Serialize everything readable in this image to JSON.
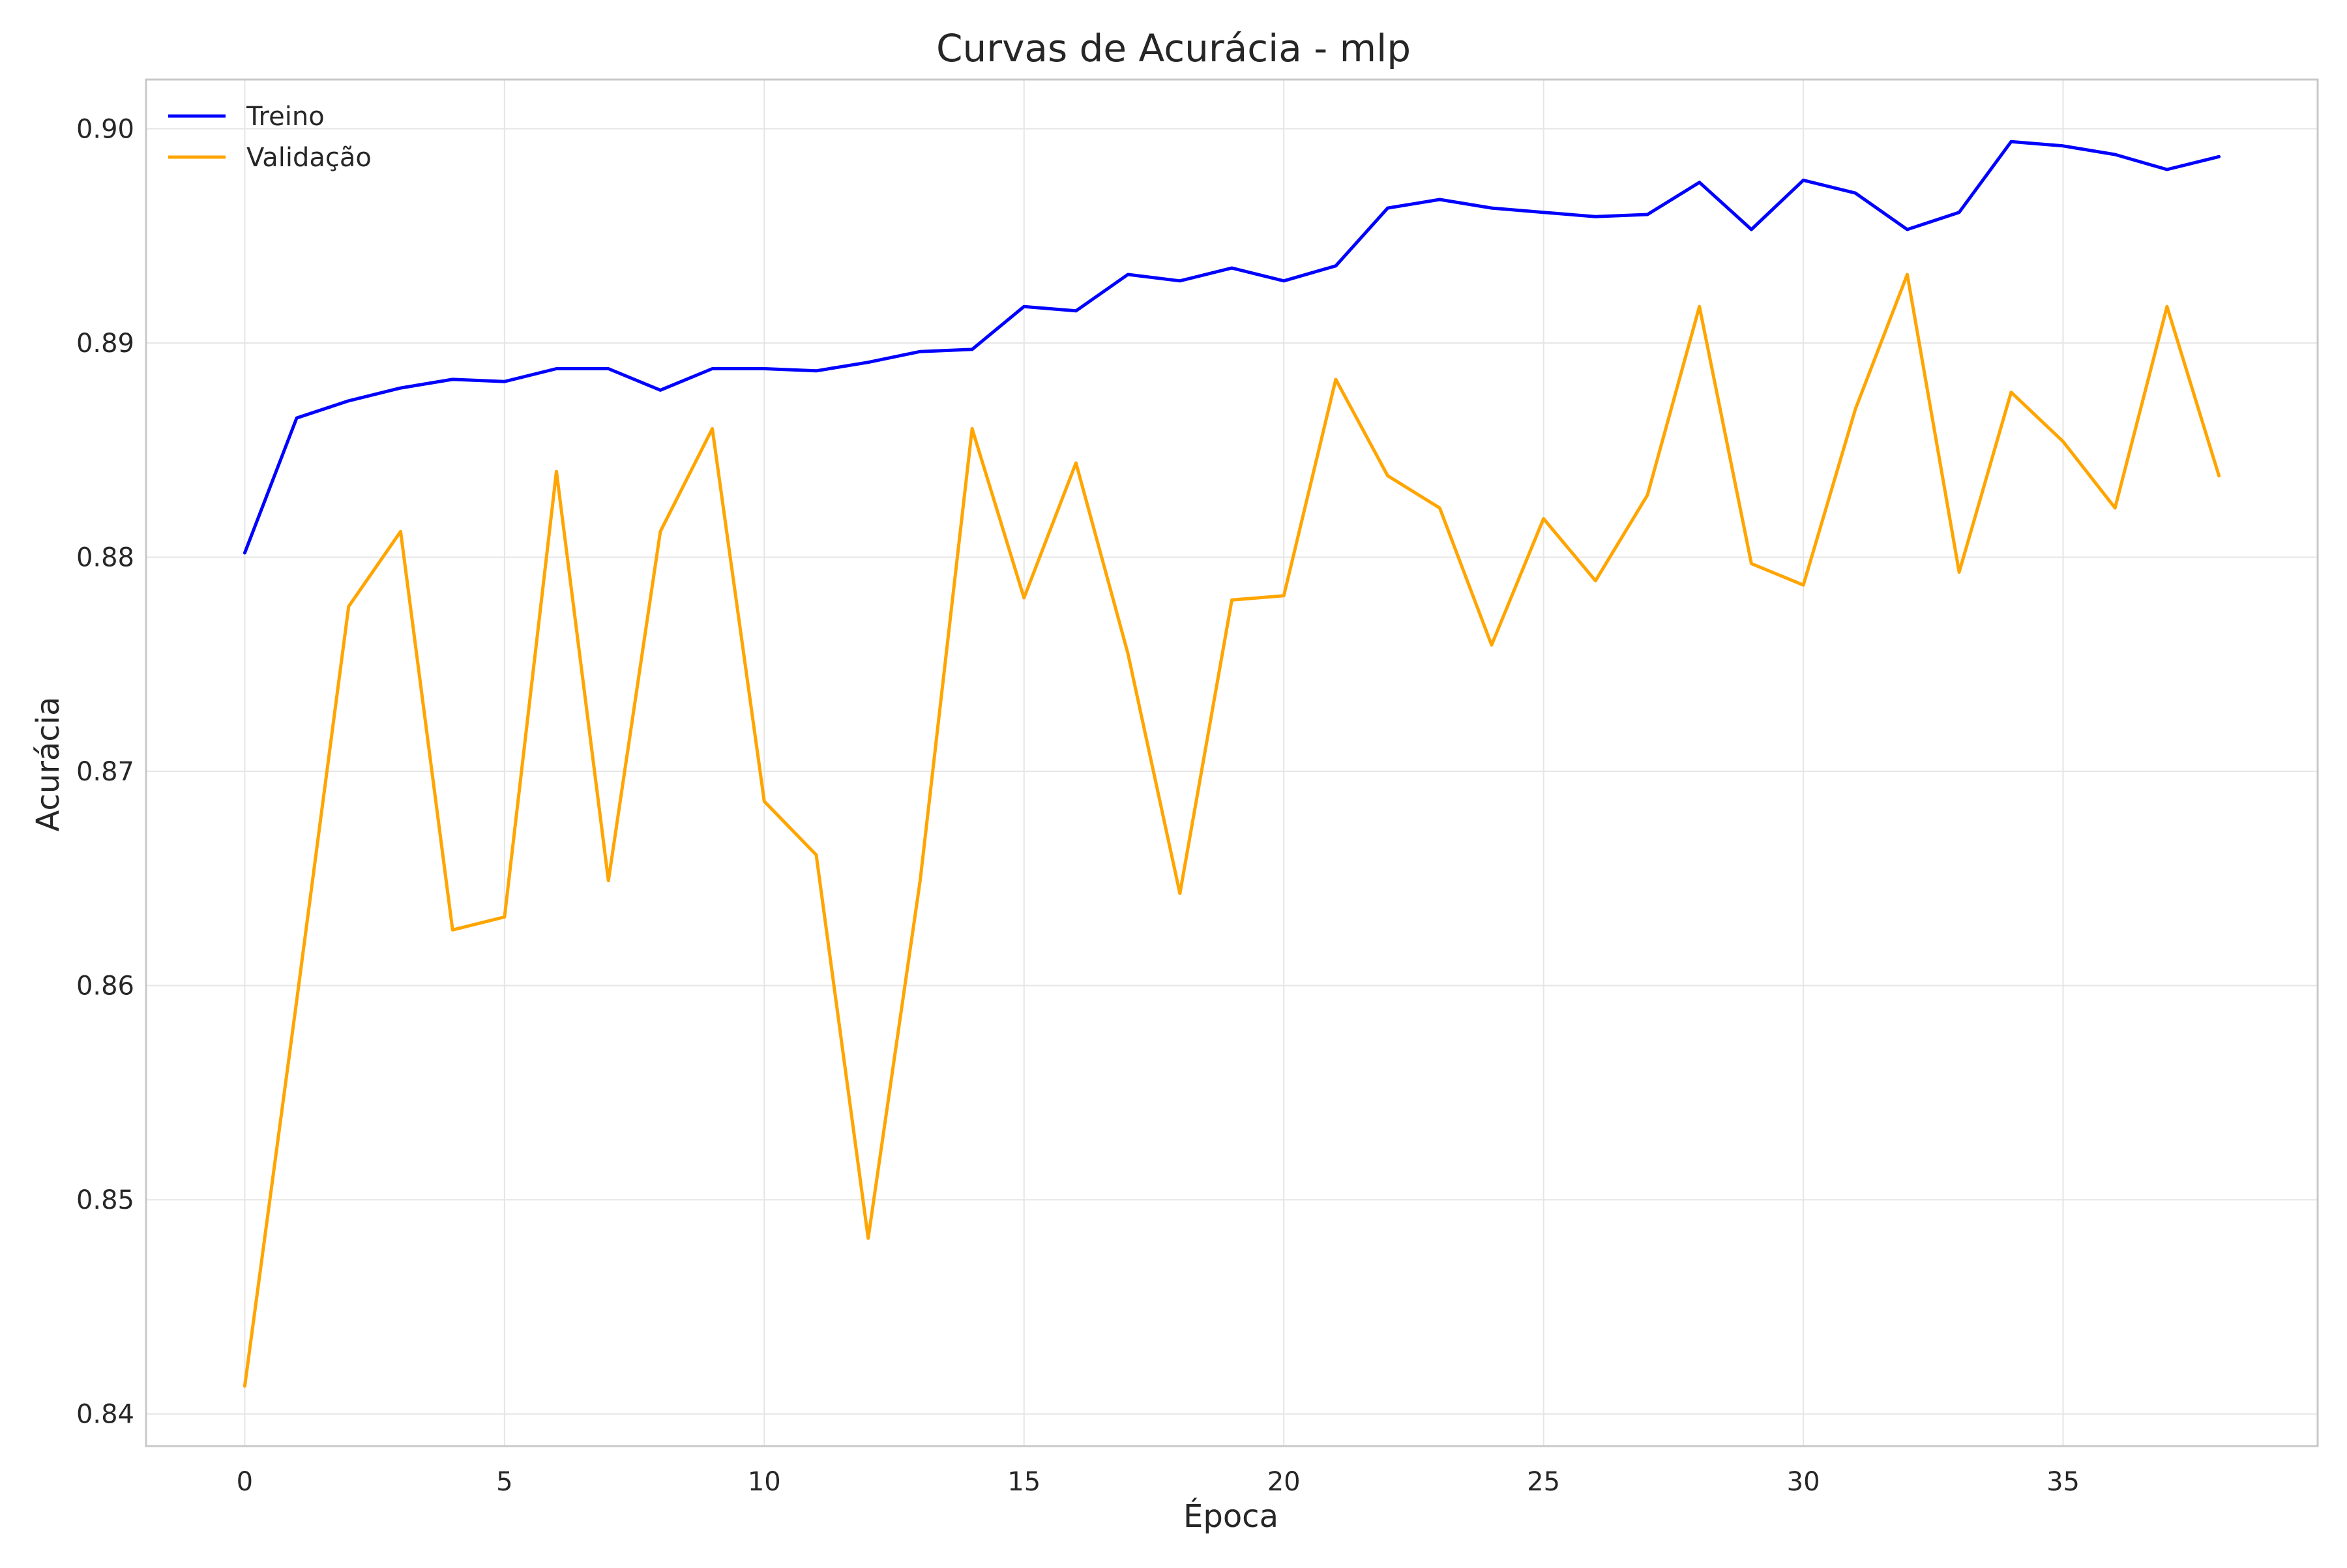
{
  "chart_data": {
    "type": "line",
    "title": "Curvas de Acurácia - mlp",
    "xlabel": "Época",
    "ylabel": "Acurácia",
    "xlim": [
      -1.9,
      39.9
    ],
    "ylim": [
      0.8385,
      0.9023
    ],
    "grid": true,
    "legend_position": "top-left",
    "x_ticks": [
      0,
      5,
      10,
      15,
      20,
      25,
      30,
      35
    ],
    "x_tick_labels": [
      "0",
      "5",
      "10",
      "15",
      "20",
      "25",
      "30",
      "35"
    ],
    "y_ticks": [
      0.84,
      0.85,
      0.86,
      0.87,
      0.88,
      0.89,
      0.9
    ],
    "y_tick_labels": [
      "0.84",
      "0.85",
      "0.86",
      "0.87",
      "0.88",
      "0.89",
      "0.90"
    ],
    "x": [
      0,
      1,
      2,
      3,
      4,
      5,
      6,
      7,
      8,
      9,
      10,
      11,
      12,
      13,
      14,
      15,
      16,
      17,
      18,
      19,
      20,
      21,
      22,
      23,
      24,
      25,
      26,
      27,
      28,
      29,
      30,
      31,
      32,
      33,
      34,
      35,
      36,
      37,
      38
    ],
    "series": [
      {
        "name": "Treino",
        "color": "#0000ff",
        "values": [
          0.8802,
          0.8865,
          0.8873,
          0.8879,
          0.8883,
          0.8882,
          0.8888,
          0.8888,
          0.8878,
          0.8888,
          0.8888,
          0.8887,
          0.8891,
          0.8896,
          0.8897,
          0.8917,
          0.8915,
          0.8932,
          0.8929,
          0.8935,
          0.8929,
          0.8936,
          0.8963,
          0.8967,
          0.8963,
          0.8961,
          0.8959,
          0.896,
          0.8975,
          0.8953,
          0.8976,
          0.897,
          0.8953,
          0.8961,
          0.8994,
          0.8992,
          0.8988,
          0.8981,
          0.8987
        ]
      },
      {
        "name": "Validação",
        "color": "#ffa500",
        "values": [
          0.8413,
          0.8593,
          0.8777,
          0.8812,
          0.8626,
          0.8632,
          0.884,
          0.8649,
          0.8812,
          0.886,
          0.8686,
          0.8661,
          0.8482,
          0.8649,
          0.886,
          0.8781,
          0.8844,
          0.8755,
          0.8643,
          0.878,
          0.8782,
          0.8883,
          0.8838,
          0.8823,
          0.8759,
          0.8818,
          0.8789,
          0.8829,
          0.8917,
          0.8797,
          0.8787,
          0.8869,
          0.8932,
          0.8793,
          0.8877,
          0.8854,
          0.8823,
          0.8917,
          0.8838
        ]
      }
    ]
  }
}
